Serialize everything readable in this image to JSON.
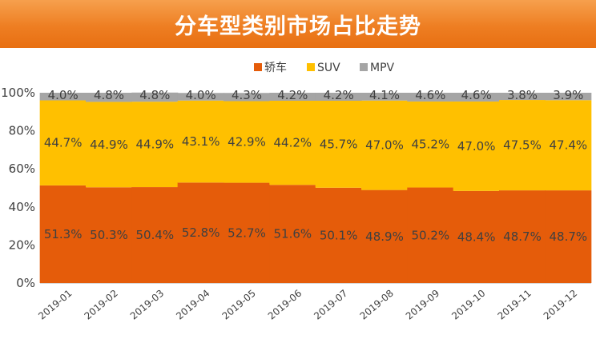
{
  "title": "分车型类别市场占比走势",
  "colors": {
    "title_bg": "#ee7e22",
    "sedan": "#e55c0a",
    "suv": "#ffc000",
    "mpv": "#a5a5a5",
    "axis": "#d9d9d9",
    "text": "#404040"
  },
  "chart_data": {
    "type": "bar",
    "stacked": true,
    "percent_stacked": true,
    "categories": [
      "2019-01",
      "2019-02",
      "2019-03",
      "2019-04",
      "2019-05",
      "2019-06",
      "2019-07",
      "2019-08",
      "2019-09",
      "2019-10",
      "2019-11",
      "2019-12"
    ],
    "series": [
      {
        "name": "轿车",
        "values": [
          51.3,
          50.3,
          50.4,
          52.8,
          52.7,
          51.6,
          50.1,
          48.9,
          50.2,
          48.4,
          48.7,
          48.7
        ],
        "labels": [
          "51.3%",
          "50.3%",
          "50.4%",
          "52.8%",
          "52.7%",
          "51.6%",
          "50.1%",
          "48.9%",
          "50.2%",
          "48.4%",
          "48.7%",
          "48.7%"
        ]
      },
      {
        "name": "SUV",
        "values": [
          44.7,
          44.9,
          44.9,
          43.1,
          42.9,
          44.2,
          45.7,
          47.0,
          45.2,
          47.0,
          47.5,
          47.4
        ],
        "labels": [
          "44.7%",
          "44.9%",
          "44.9%",
          "43.1%",
          "42.9%",
          "44.2%",
          "45.7%",
          "47.0%",
          "45.2%",
          "47.0%",
          "47.5%",
          "47.4%"
        ]
      },
      {
        "name": "MPV",
        "values": [
          4.0,
          4.8,
          4.8,
          4.0,
          4.3,
          4.2,
          4.2,
          4.1,
          4.6,
          4.6,
          3.8,
          3.9
        ],
        "labels": [
          "4.0%",
          "4.8%",
          "4.8%",
          "4.0%",
          "4.3%",
          "4.2%",
          "4.2%",
          "4.1%",
          "4.6%",
          "4.6%",
          "3.8%",
          "3.9%"
        ]
      }
    ],
    "yticks": [
      "0%",
      "20%",
      "40%",
      "60%",
      "80%",
      "100%"
    ],
    "ylim": [
      0,
      100
    ],
    "legend_position": "top",
    "grid": false
  }
}
